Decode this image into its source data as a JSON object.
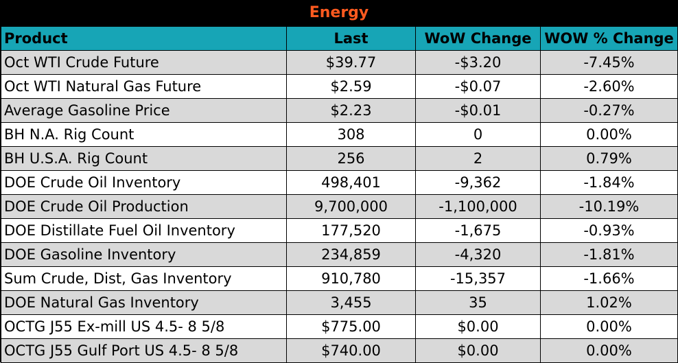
{
  "table": {
    "title": "Energy",
    "colors": {
      "title_background": "#000000",
      "title_text": "#ff5a1f",
      "header_background": "#17a5b6",
      "stripe_background": "#d9d9d9"
    },
    "headers": [
      "Product",
      "Last",
      "WoW Change",
      "WOW % Change"
    ],
    "rows": [
      [
        "Oct WTI Crude Future",
        "$39.77",
        "-$3.20",
        "-7.45%"
      ],
      [
        "Oct WTI Natural Gas Future",
        "$2.59",
        "-$0.07",
        "-2.60%"
      ],
      [
        "Average Gasoline Price",
        "$2.23",
        "-$0.01",
        "-0.27%"
      ],
      [
        "BH N.A. Rig Count",
        "308",
        "0",
        "0.00%"
      ],
      [
        "BH U.S.A. Rig Count",
        "256",
        "2",
        "0.79%"
      ],
      [
        "DOE Crude Oil Inventory",
        "498,401",
        "-9,362",
        "-1.84%"
      ],
      [
        "DOE Crude Oil Production",
        "9,700,000",
        "-1,100,000",
        "-10.19%"
      ],
      [
        "DOE Distillate Fuel Oil Inventory",
        "177,520",
        "-1,675",
        "-0.93%"
      ],
      [
        "DOE Gasoline Inventory",
        "234,859",
        "-4,320",
        "-1.81%"
      ],
      [
        "Sum Crude, Dist, Gas Inventory",
        "910,780",
        "-15,357",
        "-1.66%"
      ],
      [
        "DOE Natural Gas Inventory",
        "3,455",
        "35",
        "1.02%"
      ],
      [
        "OCTG J55 Ex-mill US 4.5- 8 5/8",
        "$775.00",
        "$0.00",
        "0.00%"
      ],
      [
        "OCTG J55 Gulf Port US 4.5- 8 5/8",
        "$740.00",
        "$0.00",
        "0.00%"
      ]
    ]
  }
}
